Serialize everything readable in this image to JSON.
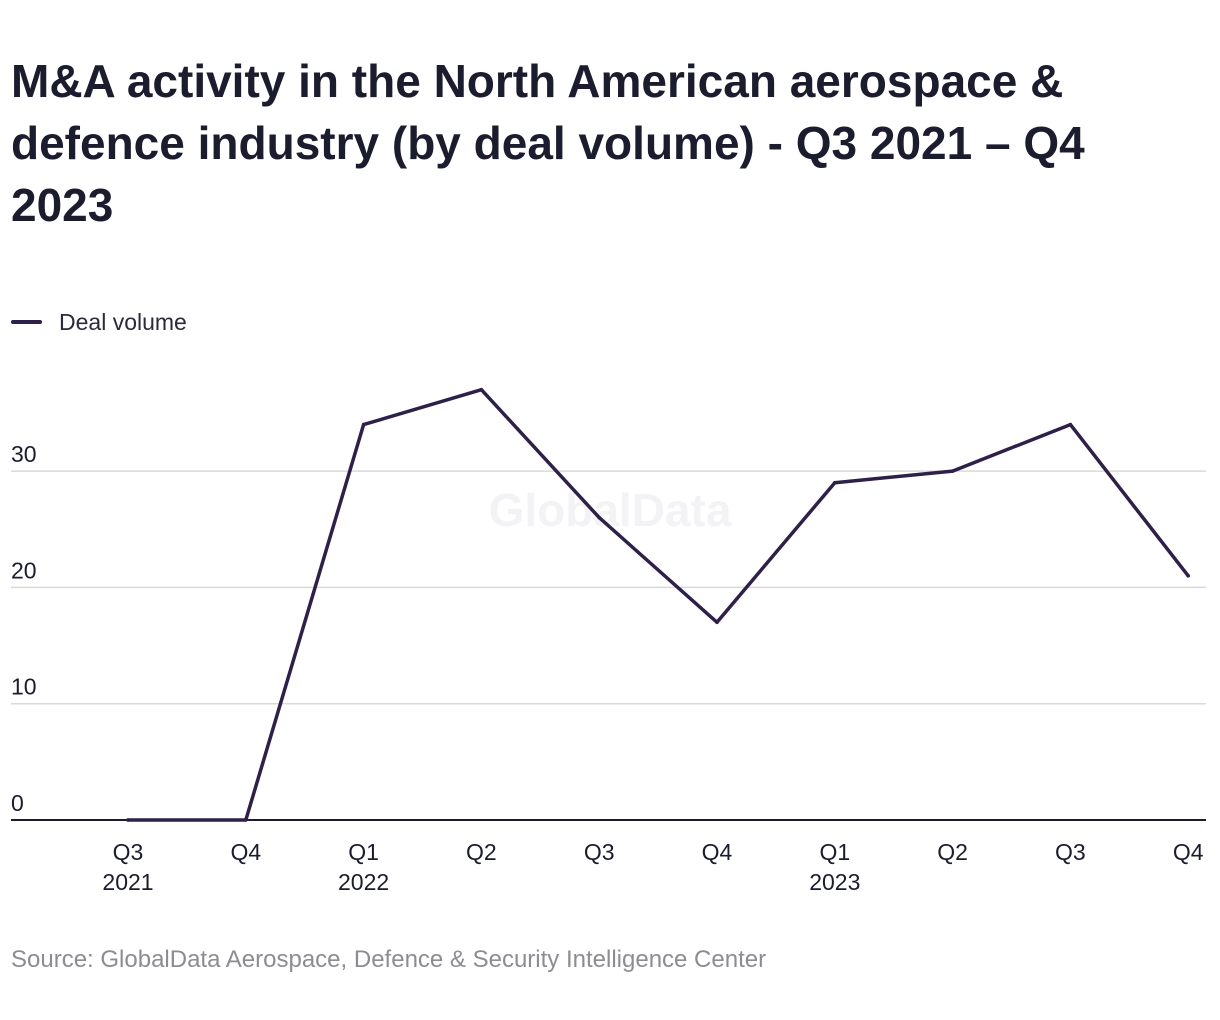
{
  "title": "M&A activity in the North American aerospace & defence industry (by deal volume) - Q3 2021 – Q4 2023",
  "source": "Source: GlobalData Aerospace, Defence & Security Intelligence Center",
  "watermark": "GlobalData",
  "colors": {
    "series": "#2e2048",
    "grid": "#d9d9d9",
    "axis": "#1b1c2e",
    "text": "#1b1c2e",
    "source": "#8c8c93"
  },
  "chart_data": {
    "type": "line",
    "categories": [
      "Q3 2021",
      "Q4 2021",
      "Q1 2022",
      "Q2 2022",
      "Q3 2022",
      "Q4 2022",
      "Q1 2023",
      "Q2 2023",
      "Q3 2023",
      "Q4 2023"
    ],
    "x_tick_labels": [
      {
        "quarter": "Q3",
        "year": "2021"
      },
      {
        "quarter": "Q4",
        "year": ""
      },
      {
        "quarter": "Q1",
        "year": "2022"
      },
      {
        "quarter": "Q2",
        "year": ""
      },
      {
        "quarter": "Q3",
        "year": ""
      },
      {
        "quarter": "Q4",
        "year": ""
      },
      {
        "quarter": "Q1",
        "year": "2023"
      },
      {
        "quarter": "Q2",
        "year": ""
      },
      {
        "quarter": "Q3",
        "year": ""
      },
      {
        "quarter": "Q4",
        "year": ""
      }
    ],
    "series": [
      {
        "name": "Deal volume",
        "values": [
          0,
          0,
          34,
          37,
          26,
          17,
          29,
          30,
          34,
          21
        ]
      }
    ],
    "y_ticks": [
      0,
      10,
      20,
      30
    ],
    "ylim": [
      0,
      40
    ],
    "grid": true,
    "legend": "top-left",
    "xlabel": "",
    "ylabel": ""
  }
}
